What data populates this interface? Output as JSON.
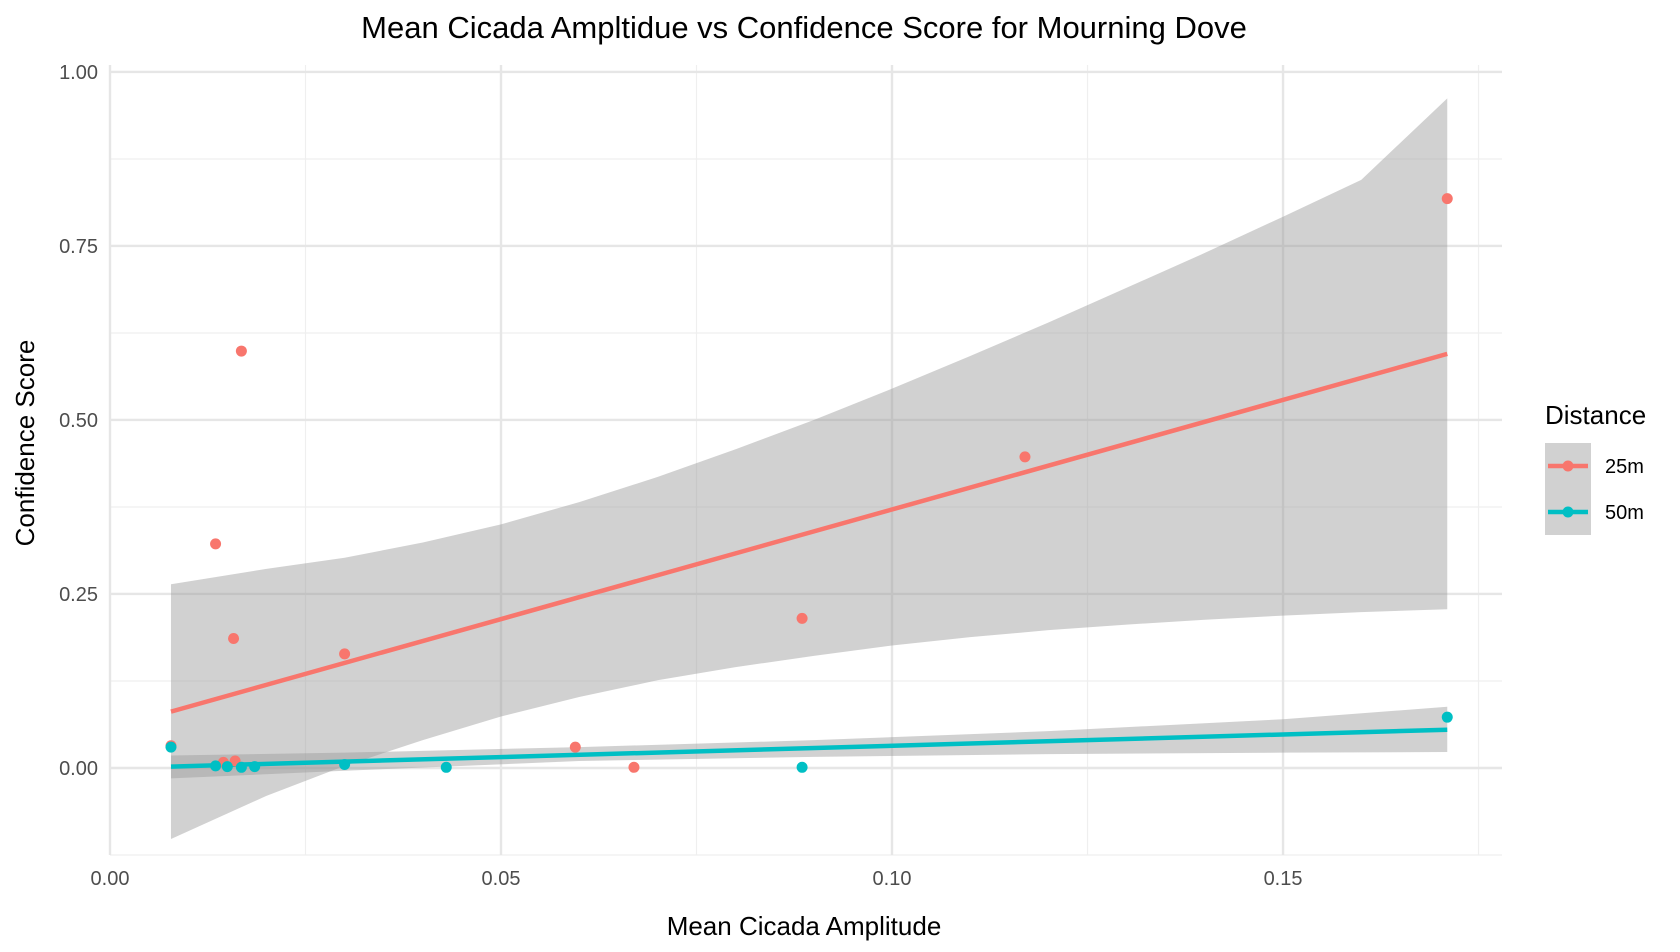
{
  "chart_data": {
    "type": "scatter",
    "title": "Mean Cicada Ampltidue vs Confidence Score for Mourning Dove",
    "xlabel": "Mean Cicada Amplitude",
    "ylabel": "Confidence Score",
    "xlim": [
      0.0,
      0.178
    ],
    "ylim": [
      -0.125,
      1.01
    ],
    "x_ticks": [
      0.0,
      0.05,
      0.1,
      0.15
    ],
    "x_tick_labels": [
      "0.00",
      "0.05",
      "0.10",
      "0.15"
    ],
    "y_ticks": [
      0.0,
      0.25,
      0.5,
      0.75,
      1.0
    ],
    "y_tick_labels": [
      "0.00",
      "0.25",
      "0.50",
      "0.75",
      "1.00"
    ],
    "grid": true,
    "legend": {
      "title": "Distance",
      "placement": "right",
      "entries": [
        "25m",
        "50m"
      ]
    },
    "series": [
      {
        "name": "25m",
        "color": "#F8766D",
        "points": [
          {
            "x": 0.0078,
            "y": 0.032
          },
          {
            "x": 0.0135,
            "y": 0.322
          },
          {
            "x": 0.0145,
            "y": 0.008
          },
          {
            "x": 0.0158,
            "y": 0.186
          },
          {
            "x": 0.016,
            "y": 0.01
          },
          {
            "x": 0.0168,
            "y": 0.599
          },
          {
            "x": 0.03,
            "y": 0.164
          },
          {
            "x": 0.0595,
            "y": 0.03
          },
          {
            "x": 0.067,
            "y": 0.001
          },
          {
            "x": 0.0885,
            "y": 0.215
          },
          {
            "x": 0.117,
            "y": 0.447
          },
          {
            "x": 0.171,
            "y": 0.818
          }
        ],
        "fit": {
          "x": [
            0.0078,
            0.171
          ],
          "y": [
            0.081,
            0.595
          ]
        },
        "band": {
          "x": [
            0.0078,
            0.02,
            0.03,
            0.04,
            0.05,
            0.06,
            0.07,
            0.08,
            0.09,
            0.1,
            0.11,
            0.12,
            0.13,
            0.14,
            0.15,
            0.16,
            0.171
          ],
          "upper": [
            0.264,
            0.286,
            0.302,
            0.324,
            0.35,
            0.382,
            0.418,
            0.458,
            0.5,
            0.545,
            0.592,
            0.64,
            0.69,
            0.74,
            0.792,
            0.845,
            0.962
          ],
          "lower": [
            -0.102,
            -0.04,
            0.003,
            0.04,
            0.074,
            0.102,
            0.126,
            0.145,
            0.161,
            0.176,
            0.188,
            0.198,
            0.206,
            0.213,
            0.219,
            0.224,
            0.228
          ]
        }
      },
      {
        "name": "50m",
        "color": "#00BFC4",
        "points": [
          {
            "x": 0.0078,
            "y": 0.03
          },
          {
            "x": 0.0135,
            "y": 0.003
          },
          {
            "x": 0.015,
            "y": 0.002
          },
          {
            "x": 0.0168,
            "y": 0.001
          },
          {
            "x": 0.0185,
            "y": 0.002
          },
          {
            "x": 0.03,
            "y": 0.005
          },
          {
            "x": 0.043,
            "y": 0.001
          },
          {
            "x": 0.0885,
            "y": 0.001
          },
          {
            "x": 0.171,
            "y": 0.073
          }
        ],
        "fit": {
          "x": [
            0.0078,
            0.171
          ],
          "y": [
            0.002,
            0.055
          ]
        },
        "band": {
          "x": [
            0.0078,
            0.03,
            0.06,
            0.09,
            0.12,
            0.15,
            0.171
          ],
          "upper": [
            0.018,
            0.022,
            0.03,
            0.04,
            0.053,
            0.07,
            0.088
          ],
          "lower": [
            -0.015,
            -0.004,
            0.01,
            0.016,
            0.02,
            0.022,
            0.023
          ]
        }
      }
    ]
  }
}
